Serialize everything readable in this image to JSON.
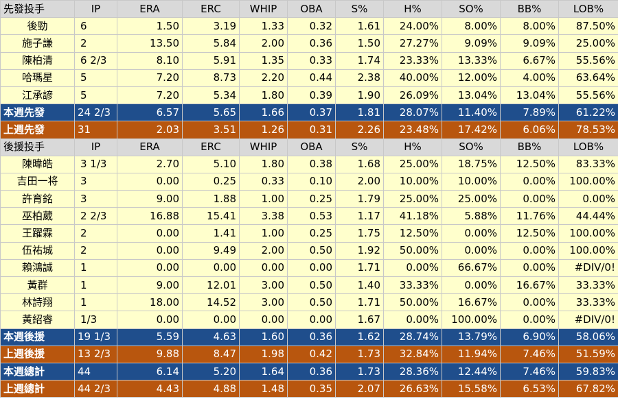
{
  "headers": {
    "starters": [
      "先發投手",
      "IP",
      "ERA",
      "ERC",
      "WHIP",
      "OBA",
      "S%",
      "H%",
      "SO%",
      "BB%",
      "LOB%"
    ],
    "relievers": [
      "後援投手",
      "IP",
      "ERA",
      "ERC",
      "WHIP",
      "OBA",
      "S%",
      "H%",
      "SO%",
      "BB%",
      "LOB%"
    ]
  },
  "starters": [
    [
      "後勁",
      "6",
      "1.50",
      "3.19",
      "1.33",
      "0.32",
      "1.61",
      "24.00%",
      "8.00%",
      "8.00%",
      "87.50%"
    ],
    [
      "施子謙",
      "2",
      "13.50",
      "5.84",
      "2.00",
      "0.36",
      "1.50",
      "27.27%",
      "9.09%",
      "9.09%",
      "25.00%"
    ],
    [
      "陳柏清",
      "6 2/3",
      "8.10",
      "5.91",
      "1.35",
      "0.33",
      "1.74",
      "23.33%",
      "13.33%",
      "6.67%",
      "55.56%"
    ],
    [
      "哈瑪星",
      "5",
      "7.20",
      "8.73",
      "2.20",
      "0.44",
      "2.38",
      "40.00%",
      "12.00%",
      "4.00%",
      "63.64%"
    ],
    [
      "江承諺",
      "5",
      "7.20",
      "5.34",
      "1.80",
      "0.39",
      "1.90",
      "26.09%",
      "13.04%",
      "13.04%",
      "55.56%"
    ]
  ],
  "starter_totals": [
    [
      "本週先發",
      "24 2/3",
      "6.57",
      "5.65",
      "1.66",
      "0.37",
      "1.81",
      "28.07%",
      "11.40%",
      "7.89%",
      "61.22%"
    ],
    [
      "上週先發",
      "31",
      "2.03",
      "3.51",
      "1.26",
      "0.31",
      "2.26",
      "23.48%",
      "17.42%",
      "6.06%",
      "78.53%"
    ]
  ],
  "relievers": [
    [
      "陳暐皓",
      "3 1/3",
      "2.70",
      "5.10",
      "1.80",
      "0.38",
      "1.68",
      "25.00%",
      "18.75%",
      "12.50%",
      "83.33%"
    ],
    [
      "吉田一将",
      "3",
      "0.00",
      "0.25",
      "0.33",
      "0.10",
      "2.00",
      "10.00%",
      "10.00%",
      "0.00%",
      "100.00%"
    ],
    [
      "許育銘",
      "3",
      "9.00",
      "1.88",
      "1.00",
      "0.25",
      "1.79",
      "25.00%",
      "25.00%",
      "0.00%",
      "0.00%"
    ],
    [
      "巫柏葳",
      "2 2/3",
      "16.88",
      "15.41",
      "3.38",
      "0.53",
      "1.17",
      "41.18%",
      "5.88%",
      "11.76%",
      "44.44%"
    ],
    [
      "王躍霖",
      "2",
      "0.00",
      "1.41",
      "1.00",
      "0.25",
      "1.75",
      "12.50%",
      "0.00%",
      "12.50%",
      "100.00%"
    ],
    [
      "伍祐城",
      "2",
      "0.00",
      "9.49",
      "2.00",
      "0.50",
      "1.92",
      "50.00%",
      "0.00%",
      "0.00%",
      "100.00%"
    ],
    [
      "賴鴻誠",
      "1",
      "0.00",
      "0.00",
      "0.00",
      "0.00",
      "1.71",
      "0.00%",
      "66.67%",
      "0.00%",
      "#DIV/0!"
    ],
    [
      "黃群",
      "1",
      "9.00",
      "12.01",
      "3.00",
      "0.50",
      "1.40",
      "33.33%",
      "0.00%",
      "16.67%",
      "33.33%"
    ],
    [
      "林詩翔",
      "1",
      "18.00",
      "14.52",
      "3.00",
      "0.50",
      "1.71",
      "50.00%",
      "16.67%",
      "0.00%",
      "33.33%"
    ],
    [
      "黃紹睿",
      "1/3",
      "0.00",
      "0.00",
      "0.00",
      "0.00",
      "1.67",
      "0.00%",
      "100.00%",
      "0.00%",
      "#DIV/0!"
    ]
  ],
  "reliever_totals": [
    [
      "本週後援",
      "19 1/3",
      "5.59",
      "4.63",
      "1.60",
      "0.36",
      "1.62",
      "28.74%",
      "13.79%",
      "6.90%",
      "58.06%"
    ],
    [
      "上週後援",
      "13 2/3",
      "9.88",
      "8.47",
      "1.98",
      "0.42",
      "1.73",
      "32.84%",
      "11.94%",
      "7.46%",
      "51.59%"
    ]
  ],
  "grand_totals": [
    [
      "本週總計",
      "44",
      "6.14",
      "5.20",
      "1.64",
      "0.36",
      "1.73",
      "28.36%",
      "12.44%",
      "7.46%",
      "59.83%"
    ],
    [
      "上週總計",
      "44 2/3",
      "4.43",
      "4.88",
      "1.48",
      "0.35",
      "2.07",
      "26.63%",
      "15.58%",
      "6.53%",
      "67.82%"
    ]
  ],
  "colors": {
    "header_bg": "#d9d9d9",
    "player_bg": "#ffffcc",
    "this_week_bg": "#1f4e8c",
    "last_week_bg": "#b8560e"
  }
}
